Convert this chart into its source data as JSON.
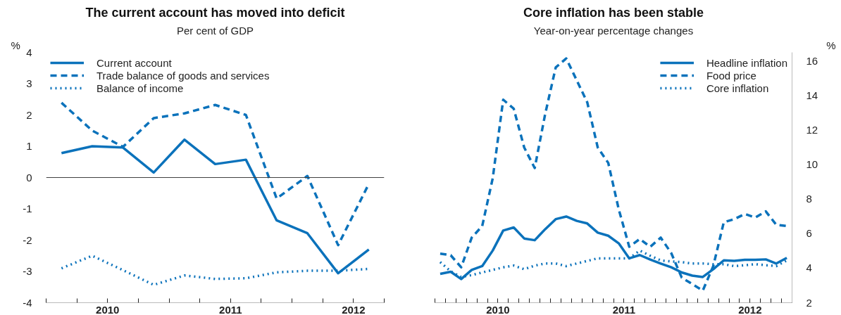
{
  "chart_data": [
    {
      "type": "line",
      "title": "The current account has moved into deficit",
      "subtitle": "Per cent of GDP",
      "ylabel": "%",
      "x": [
        2010.125,
        2010.375,
        2010.625,
        2010.875,
        2011.125,
        2011.375,
        2011.625,
        2011.875,
        2012.125,
        2012.375,
        2012.625
      ],
      "series": [
        {
          "name": "Current account",
          "color": "#0b72bb",
          "line_style": "solid",
          "values": [
            0.78,
            1.0,
            0.96,
            0.16,
            1.21,
            0.43,
            0.57,
            -1.37,
            -1.78,
            -3.06,
            -2.3
          ]
        },
        {
          "name": "Trade balance of goods and services",
          "color": "#0b72bb",
          "line_style": "dashed",
          "values": [
            2.39,
            1.5,
            0.98,
            1.9,
            2.05,
            2.32,
            2.0,
            -0.67,
            0.05,
            -2.16,
            -0.2
          ]
        },
        {
          "name": "Balance of income",
          "color": "#0b72bb",
          "line_style": "dotted",
          "values": [
            -2.9,
            -2.5,
            -2.96,
            -3.43,
            -3.13,
            -3.24,
            -3.22,
            -3.03,
            -2.98,
            -2.98,
            -2.92
          ]
        }
      ],
      "xlim": [
        2010,
        2012.75
      ],
      "xticks": [
        {
          "value": 2010,
          "label": null
        },
        {
          "value": 2010.25,
          "label": null
        },
        {
          "value": 2010.5,
          "label": "2010"
        },
        {
          "value": 2010.75,
          "label": null
        },
        {
          "value": 2011,
          "label": null
        },
        {
          "value": 2011.25,
          "label": null
        },
        {
          "value": 2011.5,
          "label": "2011"
        },
        {
          "value": 2011.75,
          "label": null
        },
        {
          "value": 2012,
          "label": null
        },
        {
          "value": 2012.25,
          "label": null
        },
        {
          "value": 2012.5,
          "label": "2012"
        },
        {
          "value": 2012.75,
          "label": null
        }
      ],
      "ylim": [
        -4,
        4
      ],
      "yticks": [
        -4,
        -3,
        -2,
        -1,
        0,
        1,
        2,
        3,
        4
      ],
      "ref_lines": [
        {
          "axis": "y",
          "value": 0,
          "color": "#404040"
        }
      ],
      "grid": false,
      "legend": "top left"
    },
    {
      "type": "line",
      "title": "Core inflation has been stable",
      "subtitle": "Year-on-year percentage changes",
      "y2label": "%",
      "x": [
        2010.0417,
        2010.125,
        2010.2083,
        2010.2917,
        2010.375,
        2010.4583,
        2010.5417,
        2010.625,
        2010.7083,
        2010.7917,
        2010.875,
        2010.9583,
        2011.0417,
        2011.125,
        2011.2083,
        2011.2917,
        2011.375,
        2011.4583,
        2011.5417,
        2011.625,
        2011.7083,
        2011.7917,
        2011.875,
        2011.9583,
        2012.0417,
        2012.125,
        2012.2083,
        2012.2917,
        2012.375,
        2012.4583,
        2012.5417,
        2012.625,
        2012.7083,
        2012.7917
      ],
      "series": [
        {
          "name": "Headline inflation",
          "color": "#0b72bb",
          "line_style": "solid",
          "axis": "y2",
          "values": [
            3.67,
            3.79,
            3.37,
            3.9,
            4.12,
            5.02,
            6.18,
            6.36,
            5.72,
            5.62,
            6.26,
            6.84,
            6.99,
            6.74,
            6.59,
            6.06,
            5.88,
            5.44,
            4.57,
            4.76,
            4.5,
            4.27,
            4.05,
            3.75,
            3.57,
            3.49,
            3.94,
            4.45,
            4.42,
            4.48,
            4.48,
            4.51,
            4.27,
            4.6
          ]
        },
        {
          "name": "Food price",
          "color": "#0b72bb",
          "line_style": "dashed",
          "axis": "y2",
          "values": [
            4.84,
            4.75,
            4.05,
            5.77,
            6.44,
            9.2,
            13.76,
            13.24,
            10.99,
            9.8,
            12.94,
            15.63,
            16.15,
            14.88,
            13.61,
            10.99,
            10.1,
            7.41,
            5.24,
            5.69,
            5.24,
            5.77,
            4.87,
            3.45,
            3.08,
            2.7,
            4.12,
            6.66,
            6.84,
            7.14,
            6.93,
            7.29,
            6.51,
            6.44
          ]
        },
        {
          "name": "Core inflation",
          "color": "#0b72bb",
          "line_style": "dotted",
          "axis": "y2",
          "values": [
            4.35,
            3.82,
            3.49,
            3.6,
            3.75,
            3.9,
            4.05,
            4.15,
            3.94,
            4.15,
            4.27,
            4.27,
            4.12,
            4.27,
            4.42,
            4.57,
            4.57,
            4.57,
            4.57,
            5.02,
            4.72,
            4.45,
            4.39,
            4.35,
            4.27,
            4.27,
            4.23,
            4.23,
            4.12,
            4.17,
            4.23,
            4.17,
            4.12,
            4.45
          ]
        }
      ],
      "xlim": [
        2010,
        2012.8333
      ],
      "xticks": [
        {
          "value": 2010,
          "label": null
        },
        {
          "value": 2010.0833,
          "label": null
        },
        {
          "value": 2010.1667,
          "label": null
        },
        {
          "value": 2010.25,
          "label": null
        },
        {
          "value": 2010.3333,
          "label": null
        },
        {
          "value": 2010.4167,
          "label": null
        },
        {
          "value": 2010.5,
          "label": "2010"
        },
        {
          "value": 2010.5833,
          "label": null
        },
        {
          "value": 2010.6667,
          "label": null
        },
        {
          "value": 2010.75,
          "label": null
        },
        {
          "value": 2010.8333,
          "label": null
        },
        {
          "value": 2010.9167,
          "label": null
        },
        {
          "value": 2011,
          "label": null
        },
        {
          "value": 2011.0833,
          "label": null
        },
        {
          "value": 2011.1667,
          "label": null
        },
        {
          "value": 2011.25,
          "label": null
        },
        {
          "value": 2011.3333,
          "label": null
        },
        {
          "value": 2011.4167,
          "label": null
        },
        {
          "value": 2011.5,
          "label": "2011"
        },
        {
          "value": 2011.5833,
          "label": null
        },
        {
          "value": 2011.6667,
          "label": null
        },
        {
          "value": 2011.75,
          "label": null
        },
        {
          "value": 2011.8333,
          "label": null
        },
        {
          "value": 2011.9167,
          "label": null
        },
        {
          "value": 2012,
          "label": null
        },
        {
          "value": 2012.0833,
          "label": null
        },
        {
          "value": 2012.1667,
          "label": null
        },
        {
          "value": 2012.25,
          "label": null
        },
        {
          "value": 2012.3333,
          "label": null
        },
        {
          "value": 2012.4167,
          "label": null
        },
        {
          "value": 2012.5,
          "label": "2012"
        },
        {
          "value": 2012.5833,
          "label": null
        },
        {
          "value": 2012.6667,
          "label": null
        },
        {
          "value": 2012.75,
          "label": null
        },
        {
          "value": 2012.8333,
          "label": null
        }
      ],
      "y2lim": [
        2,
        16.5
      ],
      "y2ticks": [
        2,
        4,
        6,
        8,
        10,
        12,
        14,
        16
      ],
      "grid": false,
      "legend": "top right"
    }
  ]
}
